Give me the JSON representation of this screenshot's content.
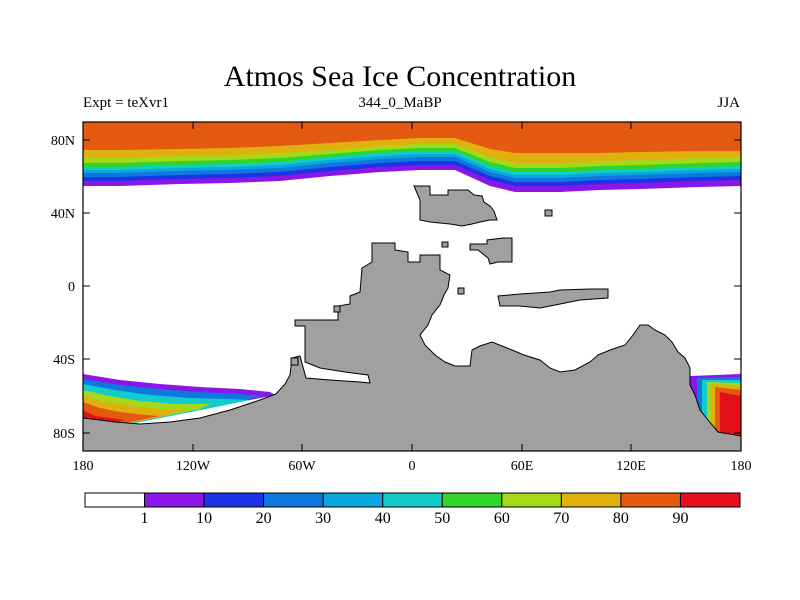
{
  "title": "Atmos Sea Ice Concentration",
  "subtitle_left": "Expt = teXvr1",
  "subtitle_center": "344_0_MaBP",
  "subtitle_right": "JJA",
  "lat_labels": [
    "80N",
    "40N",
    "0",
    "40S",
    "80S"
  ],
  "lon_labels": [
    "180",
    "120W",
    "60W",
    "0",
    "60E",
    "120E",
    "180"
  ],
  "colorbar": {
    "labels": [
      "1",
      "10",
      "20",
      "30",
      "40",
      "50",
      "60",
      "70",
      "80",
      "90"
    ],
    "colors": [
      "#ffffff",
      "#8a16e8",
      "#1f33e6",
      "#0f78de",
      "#0aa6e0",
      "#12cccc",
      "#2ed62a",
      "#a5d81a",
      "#e0b00f",
      "#e35a10",
      "#e3101a"
    ]
  },
  "colors": {
    "land": "#a0a0a0",
    "coast": "#000000",
    "frame": "#000000"
  }
}
